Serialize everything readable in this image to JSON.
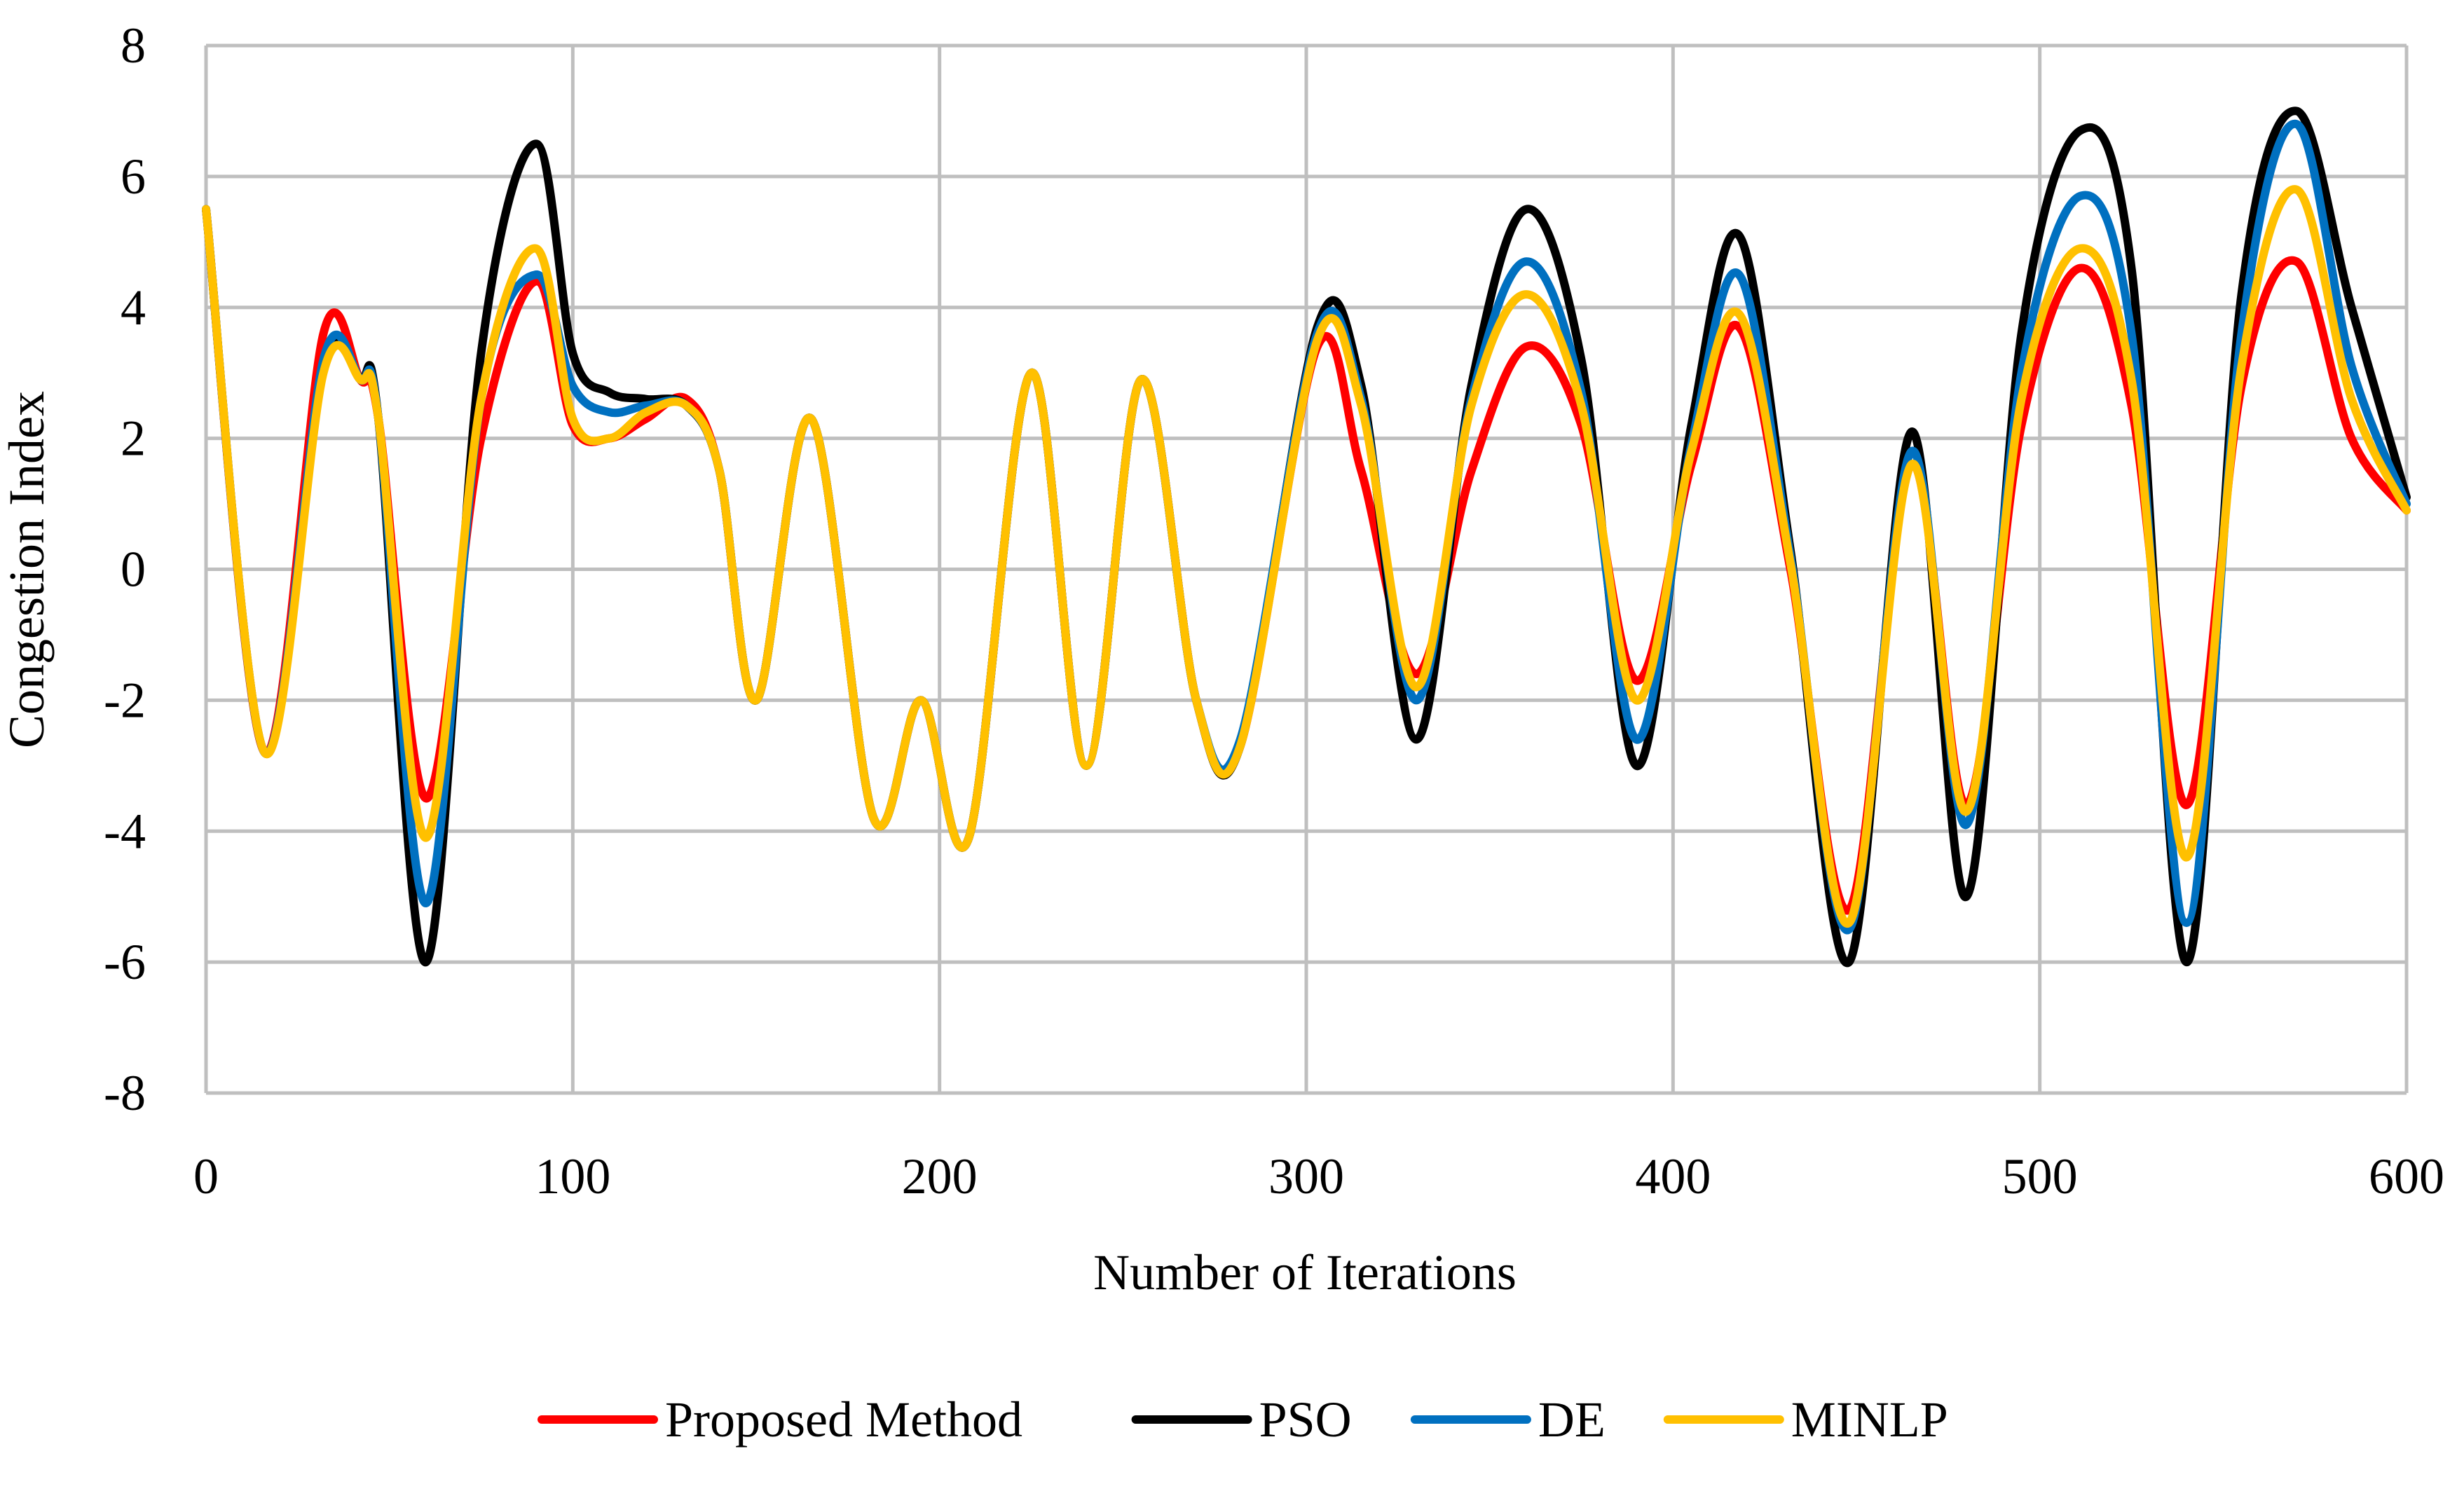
{
  "chart_data": {
    "type": "line",
    "title": "",
    "xlabel": "Number of Iterations",
    "ylabel": "Congestion Index",
    "xlim": [
      0,
      600
    ],
    "ylim": [
      -8,
      8
    ],
    "x_ticks": [
      0,
      100,
      200,
      300,
      400,
      500,
      600
    ],
    "y_ticks": [
      -8,
      -6,
      -4,
      -2,
      0,
      2,
      4,
      6,
      8
    ],
    "grid": true,
    "legend_position": "bottom",
    "x": [
      0,
      16,
      32,
      42,
      47,
      60,
      75,
      90,
      100,
      110,
      120,
      131,
      140,
      150,
      165,
      182,
      195,
      208,
      225,
      240,
      255,
      270,
      282,
      303,
      315,
      330,
      345,
      360,
      375,
      390,
      405,
      418,
      432,
      448,
      465,
      480,
      495,
      511,
      525,
      540,
      555,
      570,
      585,
      600
    ],
    "series": [
      {
        "name": "Proposed Method",
        "color": "#FF0000",
        "values": [
          5.5,
          -2.8,
          3.6,
          2.9,
          2.3,
          -3.5,
          2.0,
          4.4,
          2.2,
          2.0,
          2.3,
          2.6,
          1.5,
          -2.0,
          2.3,
          -3.8,
          -2.0,
          -4.1,
          3.0,
          -3.0,
          2.9,
          -2.0,
          -2.7,
          3.4,
          1.5,
          -1.6,
          1.5,
          3.4,
          2.2,
          -1.7,
          1.6,
          3.7,
          0.0,
          -5.2,
          1.6,
          -3.6,
          2.2,
          4.6,
          2.5,
          -3.6,
          2.8,
          4.7,
          2.0,
          0.9
        ]
      },
      {
        "name": "PSO",
        "color": "#000000",
        "values": [
          5.5,
          -2.8,
          3.1,
          2.9,
          2.3,
          -6.0,
          3.3,
          6.5,
          3.3,
          2.7,
          2.6,
          2.5,
          1.5,
          -2.0,
          2.3,
          -3.8,
          -2.0,
          -4.1,
          3.0,
          -3.0,
          2.9,
          -2.0,
          -2.7,
          3.7,
          2.8,
          -2.6,
          2.8,
          5.5,
          3.2,
          -3.0,
          2.2,
          5.1,
          0.3,
          -6.0,
          2.1,
          -5.0,
          3.6,
          6.7,
          4.6,
          -6.0,
          4.2,
          7.0,
          4.0,
          1.1
        ]
      },
      {
        "name": "DE",
        "color": "#0070C0",
        "values": [
          5.5,
          -2.8,
          3.2,
          2.9,
          2.3,
          -5.1,
          2.6,
          4.5,
          2.8,
          2.4,
          2.5,
          2.5,
          1.5,
          -2.0,
          2.3,
          -3.8,
          -2.0,
          -4.1,
          3.0,
          -3.0,
          2.9,
          -2.0,
          -2.6,
          3.6,
          2.6,
          -2.0,
          2.6,
          4.7,
          2.7,
          -2.6,
          1.9,
          4.5,
          0.2,
          -5.5,
          1.8,
          -3.9,
          3.0,
          5.7,
          3.6,
          -5.4,
          3.6,
          6.8,
          3.1,
          1.0
        ]
      },
      {
        "name": "MINLP",
        "color": "#FFC000",
        "values": [
          5.5,
          -2.8,
          3.0,
          2.9,
          2.3,
          -4.1,
          2.6,
          4.9,
          2.3,
          2.0,
          2.4,
          2.5,
          1.5,
          -2.0,
          2.3,
          -3.8,
          -2.0,
          -4.1,
          3.0,
          -3.0,
          2.9,
          -2.0,
          -2.7,
          3.5,
          2.5,
          -1.8,
          2.5,
          4.2,
          2.5,
          -2.0,
          1.8,
          3.9,
          0.1,
          -5.4,
          1.6,
          -3.7,
          2.6,
          4.9,
          2.9,
          -4.4,
          3.1,
          5.8,
          2.6,
          0.9
        ]
      }
    ]
  }
}
